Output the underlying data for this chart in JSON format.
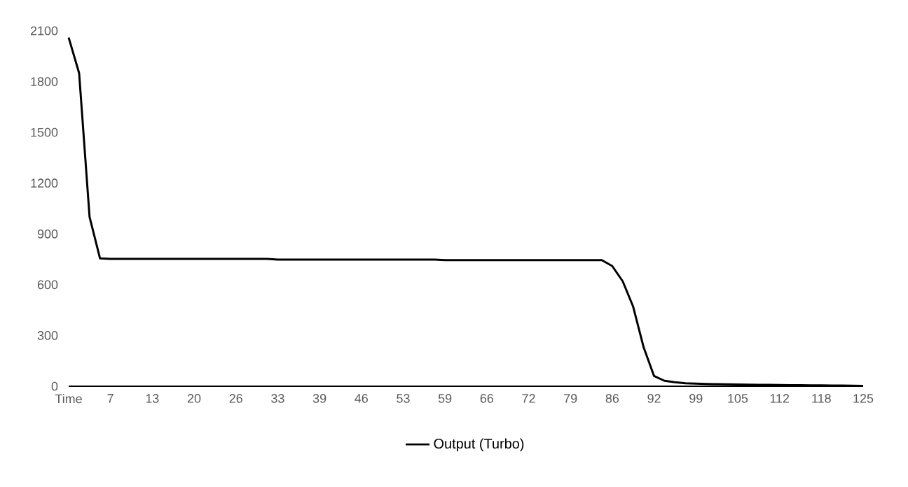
{
  "chart_data": {
    "type": "line",
    "categories": [
      "Time",
      null,
      null,
      null,
      "7",
      null,
      null,
      null,
      "13",
      null,
      null,
      null,
      "20",
      null,
      null,
      null,
      "26",
      null,
      null,
      null,
      "33",
      null,
      null,
      null,
      "39",
      null,
      null,
      null,
      "46",
      null,
      null,
      null,
      "53",
      null,
      null,
      null,
      "59",
      null,
      null,
      null,
      "66",
      null,
      null,
      null,
      "72",
      null,
      null,
      null,
      "79",
      null,
      null,
      null,
      "86",
      null,
      null,
      null,
      "92",
      null,
      null,
      null,
      "99",
      null,
      null,
      null,
      "105",
      null,
      null,
      null,
      "112",
      null,
      null,
      null,
      "118",
      null,
      null,
      null,
      "125"
    ],
    "series": [
      {
        "name": "Output (Turbo)",
        "color": "#000000",
        "values": [
          2060,
          1850,
          1000,
          755,
          752,
          752,
          752,
          752,
          752,
          752,
          752,
          752,
          752,
          752,
          752,
          752,
          752,
          752,
          752,
          752,
          748,
          748,
          748,
          748,
          748,
          748,
          748,
          748,
          748,
          748,
          748,
          748,
          748,
          748,
          748,
          748,
          745,
          745,
          745,
          745,
          745,
          745,
          745,
          745,
          745,
          745,
          745,
          745,
          745,
          745,
          745,
          745,
          710,
          620,
          470,
          230,
          60,
          32,
          24,
          18,
          15,
          13,
          12,
          11,
          10,
          9,
          8,
          8,
          7,
          6,
          6,
          5,
          5,
          4,
          4,
          3,
          2
        ]
      }
    ],
    "ylim": [
      0,
      2100
    ],
    "yticks": [
      0,
      300,
      600,
      900,
      1200,
      1500,
      1800,
      2100
    ],
    "legend": "bottom",
    "marker": "none"
  }
}
